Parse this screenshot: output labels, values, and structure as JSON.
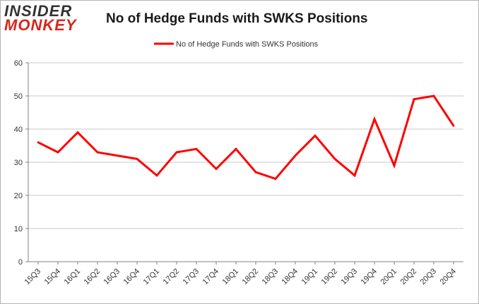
{
  "logo": {
    "line1": "INSIDER",
    "line2": "MONKEY"
  },
  "colors": {
    "series": "#ff0000",
    "grid": "#c8c8c8",
    "axis": "#808080"
  },
  "chart_data": {
    "type": "line",
    "title": "No of Hedge Funds with SWKS Positions",
    "xlabel": "",
    "ylabel": "",
    "ylim": [
      0,
      60
    ],
    "yticks": [
      0,
      10,
      20,
      30,
      40,
      50,
      60
    ],
    "grid": true,
    "legend_position": "top-center",
    "categories": [
      "15Q3",
      "15Q4",
      "16Q1",
      "16Q2",
      "16Q3",
      "16Q4",
      "17Q1",
      "17Q2",
      "17Q3",
      "17Q4",
      "18Q1",
      "18Q2",
      "18Q3",
      "18Q4",
      "19Q1",
      "19Q2",
      "19Q3",
      "19Q4",
      "20Q1",
      "20Q2",
      "20Q3",
      "20Q4"
    ],
    "series": [
      {
        "name": "No of Hedge Funds with SWKS Positions",
        "color": "#ff0000",
        "values": [
          36,
          33,
          39,
          33,
          32,
          31,
          26,
          33,
          34,
          28,
          34,
          27,
          25,
          32,
          38,
          31,
          26,
          43,
          29,
          49,
          50,
          41
        ]
      }
    ]
  }
}
